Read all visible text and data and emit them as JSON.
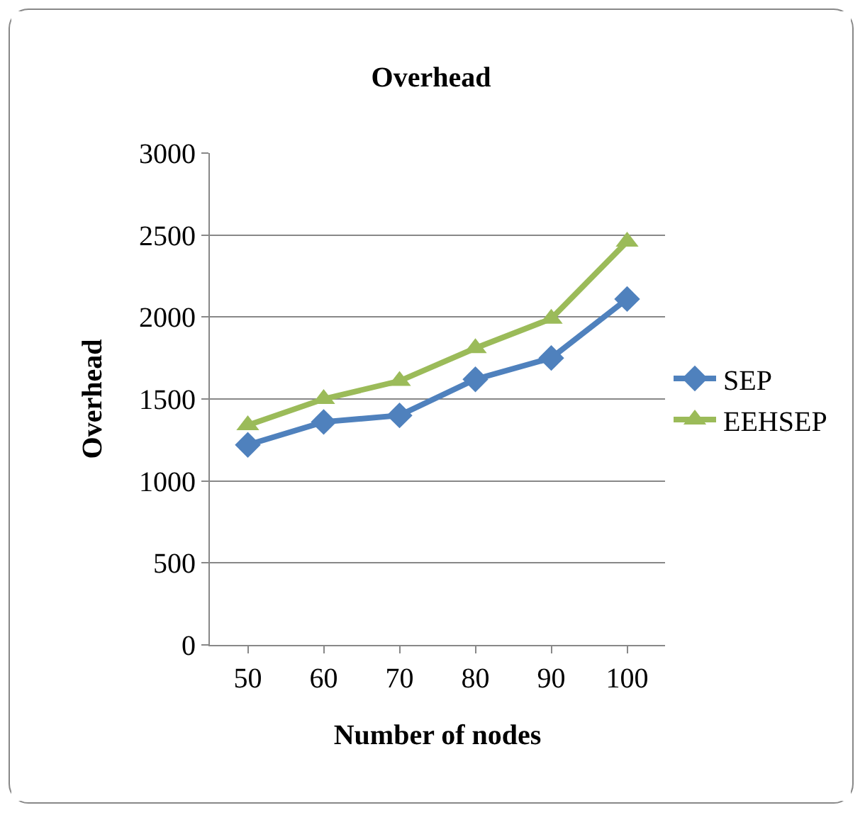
{
  "chart_data": {
    "type": "line",
    "title": "Overhead",
    "xlabel": "Number of nodes",
    "ylabel": "Overhead",
    "categories": [
      "50",
      "60",
      "70",
      "80",
      "90",
      "100"
    ],
    "series": [
      {
        "name": "SEP",
        "color": "#4f81bd",
        "marker": "diamond",
        "values": [
          1220,
          1360,
          1400,
          1620,
          1750,
          2110
        ]
      },
      {
        "name": "EEHSEP",
        "color": "#9bbb59",
        "marker": "triangle",
        "values": [
          1340,
          1500,
          1610,
          1810,
          1990,
          2460
        ]
      }
    ],
    "ylim": [
      0,
      3000
    ],
    "yticks": [
      0,
      500,
      1000,
      1500,
      2000,
      2500,
      3000
    ],
    "grid": "y",
    "legend": "right"
  }
}
